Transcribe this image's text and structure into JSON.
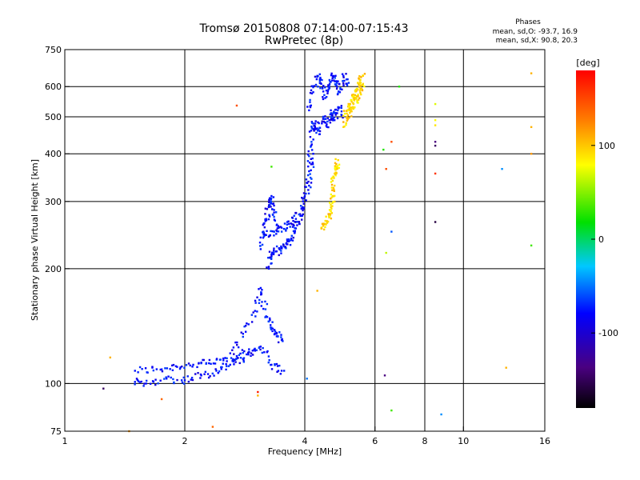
{
  "chart_data": {
    "type": "scatter",
    "title": "Tromsø 20150808 07:14:00-07:15:43",
    "subtitle": "RwPretec (8p)",
    "xlabel": "Frequency [MHz]",
    "ylabel": "Stationary phase Virtual Height [km]",
    "xscale": "log2",
    "yscale": "log",
    "xlim": [
      1,
      16
    ],
    "ylim": [
      75,
      750
    ],
    "x_ticks": [
      1,
      2,
      4,
      6,
      8,
      10,
      16
    ],
    "x_tick_labels": [
      "1",
      "2",
      "4",
      "6",
      "8",
      "10",
      "16"
    ],
    "y_ticks": [
      75,
      100,
      200,
      300,
      400,
      500,
      600,
      750
    ],
    "y_tick_labels": [
      "75",
      "100",
      "200",
      "300",
      "400",
      "500",
      "600",
      "750"
    ],
    "x_gridlines": [
      2,
      4,
      6,
      8,
      10
    ],
    "y_gridlines": [
      100,
      200,
      300,
      400,
      500,
      600
    ],
    "legend": {
      "heading": "Phases",
      "line1": "mean, sd,O: -93.7, 16.9",
      "line2": "mean, sd,X:  90.8, 20.3"
    },
    "colorbar": {
      "label": "[deg]",
      "range": [
        -180,
        180
      ],
      "ticks": [
        100,
        0,
        -100
      ],
      "tick_labels": [
        "100",
        "0",
        "-100"
      ]
    },
    "series": [
      {
        "name": "O-mode (blue, phase ~ -95 deg)",
        "phase": -95,
        "segments": [
          {
            "x": [
              1.5,
              1.7,
              1.9,
              2.1,
              2.3,
              2.5,
              2.7,
              2.9,
              3.1,
              3.3,
              3.5
            ],
            "y": [
              108,
              109,
              111,
              112,
              113,
              115,
              118,
              121,
              125,
              112,
              108
            ]
          },
          {
            "x": [
              1.5,
              1.6,
              1.8,
              2.0,
              2.2,
              2.4,
              2.6,
              2.8,
              3.0
            ],
            "y": [
              101,
              100,
              103,
              102,
              105,
              108,
              112,
              116,
              122
            ]
          },
          {
            "x": [
              2.6,
              2.8,
              3.0,
              3.1,
              3.2,
              3.3,
              3.4,
              3.5
            ],
            "y": [
              120,
              135,
              155,
              178,
              150,
              140,
              135,
              130
            ]
          },
          {
            "x": [
              3.1,
              3.15,
              3.2,
              3.25,
              3.3,
              3.35,
              3.4
            ],
            "y": [
              225,
              250,
              270,
              290,
              310,
              285,
              260
            ]
          },
          {
            "x": [
              3.25,
              3.3,
              3.4,
              3.5,
              3.6,
              3.7,
              3.8,
              3.9,
              4.0,
              4.1,
              4.15,
              4.2
            ],
            "y": [
              200,
              218,
              222,
              226,
              232,
              240,
              255,
              275,
              310,
              360,
              420,
              480
            ]
          },
          {
            "x": [
              3.2,
              3.35,
              3.5,
              3.65,
              3.8,
              3.95,
              4.1,
              4.2
            ],
            "y": [
              245,
              250,
              256,
              262,
              270,
              290,
              330,
              400
            ]
          },
          {
            "x": [
              4.1,
              4.2,
              4.3,
              4.4,
              4.5,
              4.6,
              4.7,
              4.8,
              4.9,
              5.0,
              5.1
            ],
            "y": [
              520,
              580,
              640,
              610,
              560,
              600,
              640,
              620,
              580,
              640,
              610
            ]
          },
          {
            "x": [
              4.15,
              4.25,
              4.35,
              4.45,
              4.55,
              4.65,
              4.75,
              4.85,
              4.95
            ],
            "y": [
              460,
              480,
              450,
              500,
              470,
              520,
              490,
              530,
              505
            ]
          }
        ]
      },
      {
        "name": "X-mode (yellow, phase ~ +95 deg)",
        "phase": 95,
        "segments": [
          {
            "x": [
              4.4,
              4.5,
              4.6,
              4.65,
              4.7,
              4.75
            ],
            "y": [
              255,
              262,
              275,
              290,
              310,
              330
            ]
          },
          {
            "x": [
              4.7,
              4.75,
              4.8,
              4.85
            ],
            "y": [
              340,
              355,
              370,
              385
            ]
          },
          {
            "x": [
              5.0,
              5.1,
              5.2,
              5.3,
              5.4,
              5.5,
              5.6
            ],
            "y": [
              470,
              510,
              540,
              560,
              590,
              615,
              640
            ]
          },
          {
            "x": [
              5.1,
              5.2,
              5.3,
              5.4,
              5.5,
              5.6
            ],
            "y": [
              500,
              520,
              540,
              565,
              585,
              610
            ]
          }
        ]
      }
    ],
    "scattered_points": [
      {
        "x": 1.25,
        "y": 97,
        "phase": -150
      },
      {
        "x": 1.3,
        "y": 117,
        "phase": 110
      },
      {
        "x": 1.45,
        "y": 75,
        "phase": 120
      },
      {
        "x": 1.75,
        "y": 91,
        "phase": 140
      },
      {
        "x": 2.35,
        "y": 77,
        "phase": 140
      },
      {
        "x": 2.7,
        "y": 535,
        "phase": 150
      },
      {
        "x": 3.05,
        "y": 93,
        "phase": 110
      },
      {
        "x": 3.05,
        "y": 95,
        "phase": 170
      },
      {
        "x": 3.3,
        "y": 370,
        "phase": 20
      },
      {
        "x": 3.55,
        "y": 108,
        "phase": -90
      },
      {
        "x": 4.05,
        "y": 103,
        "phase": -60
      },
      {
        "x": 4.3,
        "y": 175,
        "phase": 110
      },
      {
        "x": 6.3,
        "y": 410,
        "phase": 10
      },
      {
        "x": 6.4,
        "y": 365,
        "phase": 150
      },
      {
        "x": 6.4,
        "y": 220,
        "phase": 60
      },
      {
        "x": 6.35,
        "y": 105,
        "phase": -140
      },
      {
        "x": 6.6,
        "y": 430,
        "phase": 150
      },
      {
        "x": 6.6,
        "y": 250,
        "phase": -70
      },
      {
        "x": 6.6,
        "y": 85,
        "phase": 20
      },
      {
        "x": 6.9,
        "y": 600,
        "phase": 10
      },
      {
        "x": 8.5,
        "y": 540,
        "phase": 70
      },
      {
        "x": 8.5,
        "y": 490,
        "phase": 80
      },
      {
        "x": 8.5,
        "y": 475,
        "phase": 90
      },
      {
        "x": 8.5,
        "y": 430,
        "phase": -140
      },
      {
        "x": 8.5,
        "y": 420,
        "phase": -150
      },
      {
        "x": 8.5,
        "y": 355,
        "phase": 160
      },
      {
        "x": 8.5,
        "y": 265,
        "phase": -160
      },
      {
        "x": 8.8,
        "y": 83,
        "phase": -50
      },
      {
        "x": 12.5,
        "y": 365,
        "phase": -50
      },
      {
        "x": 12.8,
        "y": 110,
        "phase": 110
      },
      {
        "x": 14.8,
        "y": 650,
        "phase": 110
      },
      {
        "x": 14.8,
        "y": 470,
        "phase": 110
      },
      {
        "x": 14.8,
        "y": 400,
        "phase": 120
      },
      {
        "x": 14.8,
        "y": 230,
        "phase": 20
      }
    ]
  }
}
